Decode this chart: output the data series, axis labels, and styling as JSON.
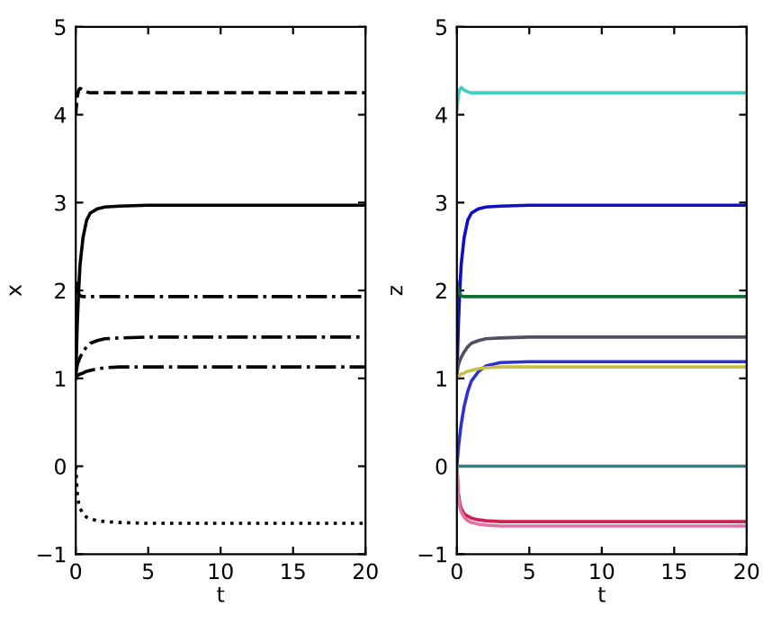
{
  "chart_data": [
    {
      "type": "line",
      "xlabel": "t",
      "ylabel": "x",
      "xlim": [
        0,
        20
      ],
      "ylim": [
        -1,
        5
      ],
      "xticks": [
        0,
        5,
        10,
        15,
        20
      ],
      "yticks": [
        -1,
        0,
        1,
        2,
        3,
        4,
        5
      ],
      "x": [
        0,
        0.1,
        0.2,
        0.3,
        0.5,
        0.75,
        1,
        1.5,
        2,
        3,
        5,
        10,
        20
      ],
      "series": [
        {
          "color": "#000000",
          "line_style": "dashed",
          "values": [
            4.0,
            4.2,
            4.28,
            4.3,
            4.28,
            4.26,
            4.25,
            4.25,
            4.25,
            4.25,
            4.25,
            4.25,
            4.25
          ]
        },
        {
          "color": "#000000",
          "line_style": "solid",
          "values": [
            1.0,
            1.6,
            2.0,
            2.3,
            2.6,
            2.8,
            2.88,
            2.93,
            2.95,
            2.96,
            2.97,
            2.97,
            2.97
          ]
        },
        {
          "color": "#000000",
          "line_style": "dashdot",
          "values": [
            2.1,
            2.0,
            1.96,
            1.94,
            1.93,
            1.93,
            1.93,
            1.93,
            1.93,
            1.93,
            1.93,
            1.93,
            1.93
          ]
        },
        {
          "color": "#000000",
          "line_style": "dashdot",
          "values": [
            1.05,
            1.15,
            1.2,
            1.24,
            1.3,
            1.36,
            1.4,
            1.43,
            1.45,
            1.46,
            1.47,
            1.47,
            1.47
          ]
        },
        {
          "color": "#000000",
          "line_style": "dashdot",
          "values": [
            1.02,
            1.03,
            1.04,
            1.05,
            1.06,
            1.08,
            1.09,
            1.11,
            1.12,
            1.13,
            1.13,
            1.13,
            1.13
          ]
        },
        {
          "color": "#000000",
          "line_style": "dotted",
          "values": [
            0,
            -0.3,
            -0.42,
            -0.48,
            -0.54,
            -0.58,
            -0.6,
            -0.62,
            -0.63,
            -0.64,
            -0.65,
            -0.65,
            -0.65
          ]
        }
      ]
    },
    {
      "type": "line",
      "xlabel": "t",
      "ylabel": "z",
      "xlim": [
        0,
        20
      ],
      "ylim": [
        -1,
        5
      ],
      "xticks": [
        0,
        5,
        10,
        15,
        20
      ],
      "yticks": [
        -1,
        0,
        1,
        2,
        3,
        4,
        5
      ],
      "line_style": "solid",
      "x": [
        0,
        0.1,
        0.2,
        0.3,
        0.5,
        0.75,
        1,
        1.5,
        2,
        3,
        5,
        10,
        20
      ],
      "series": [
        {
          "color": "#40d0c0",
          "values": [
            4.05,
            4.22,
            4.29,
            4.31,
            4.28,
            4.26,
            4.25,
            4.25,
            4.25,
            4.25,
            4.25,
            4.25,
            4.25
          ]
        },
        {
          "color": "#1010c0",
          "values": [
            1.0,
            1.6,
            2.0,
            2.3,
            2.6,
            2.8,
            2.88,
            2.93,
            2.95,
            2.96,
            2.97,
            2.97,
            2.97
          ]
        },
        {
          "color": "#107030",
          "values": [
            2.1,
            2.0,
            1.96,
            1.94,
            1.93,
            1.93,
            1.93,
            1.93,
            1.93,
            1.93,
            1.93,
            1.93,
            1.93
          ]
        },
        {
          "color": "#505060",
          "values": [
            1.05,
            1.15,
            1.2,
            1.24,
            1.3,
            1.36,
            1.4,
            1.43,
            1.45,
            1.46,
            1.47,
            1.47,
            1.47
          ]
        },
        {
          "color": "#3030d0",
          "values": [
            0,
            0.2,
            0.35,
            0.48,
            0.68,
            0.85,
            0.97,
            1.08,
            1.14,
            1.18,
            1.19,
            1.19,
            1.19
          ]
        },
        {
          "color": "#c8c040",
          "values": [
            1.02,
            1.03,
            1.04,
            1.05,
            1.06,
            1.08,
            1.09,
            1.11,
            1.12,
            1.13,
            1.13,
            1.13,
            1.13
          ]
        },
        {
          "color": "#308080",
          "values": [
            0,
            0,
            0,
            0,
            0,
            0,
            0,
            0,
            0,
            0,
            0,
            0,
            0
          ]
        },
        {
          "color": "#d02050",
          "values": [
            0,
            -0.3,
            -0.42,
            -0.48,
            -0.54,
            -0.57,
            -0.59,
            -0.61,
            -0.62,
            -0.63,
            -0.63,
            -0.63,
            -0.63
          ]
        },
        {
          "color": "#e070a8",
          "values": [
            0,
            -0.35,
            -0.46,
            -0.52,
            -0.58,
            -0.62,
            -0.64,
            -0.66,
            -0.67,
            -0.68,
            -0.68,
            -0.68,
            -0.68
          ]
        }
      ]
    }
  ]
}
